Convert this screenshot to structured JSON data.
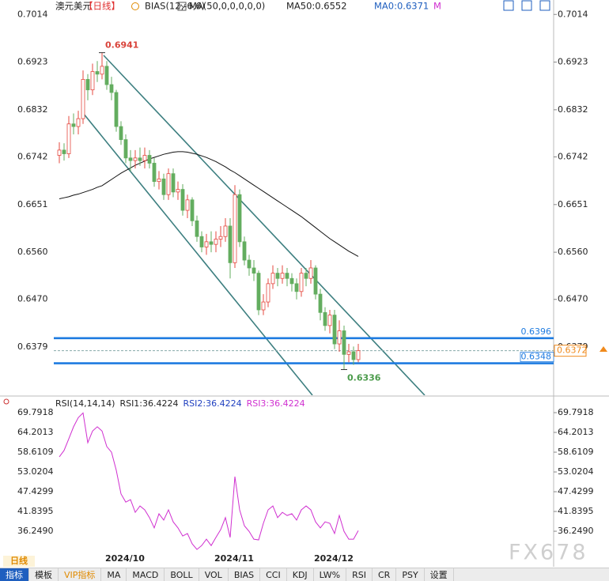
{
  "header": {
    "symbol": "澳元美元",
    "period": "【日线】",
    "bias": "BIAS(12,-6,6)",
    "ma": "MA(50,0,0,0,0,0)",
    "ma50": "MA50:0.6552",
    "ma0": "MA0:0.6371",
    "m": "M"
  },
  "period_tab": "日线",
  "watermark": "FX678",
  "toolbar": [
    "指标",
    "模板",
    "VIP指标",
    "MA",
    "MACD",
    "BOLL",
    "VOL",
    "BIAS",
    "CCI",
    "KDJ",
    "LW%",
    "RSI",
    "CR",
    "PSY",
    "设置"
  ],
  "chart_data": [
    {
      "type": "candlestick",
      "categories": [
        null,
        null,
        null,
        null,
        null,
        null,
        null,
        null,
        null,
        null,
        "2024/10",
        null,
        null,
        null,
        null,
        null,
        null,
        null,
        null,
        null,
        null,
        null,
        null,
        null,
        null,
        null,
        null,
        null,
        null,
        null,
        null,
        null,
        null,
        "2024/11",
        null,
        null,
        null,
        null,
        null,
        null,
        null,
        null,
        null,
        null,
        null,
        null,
        null,
        null,
        null,
        null,
        null,
        null,
        null,
        null,
        "2024/12",
        null,
        null,
        null,
        null,
        null,
        null,
        null,
        null,
        null
      ],
      "open": [
        0.6745,
        0.6755,
        0.6748,
        0.6805,
        0.68,
        0.6815,
        0.689,
        0.687,
        0.6905,
        0.69,
        0.6915,
        0.688,
        0.6865,
        0.68,
        0.6775,
        0.674,
        0.6735,
        0.674,
        0.6735,
        0.6745,
        0.673,
        0.6695,
        0.67,
        0.667,
        0.671,
        0.6675,
        0.668,
        0.664,
        0.666,
        0.662,
        0.659,
        0.657,
        0.658,
        0.6575,
        0.6585,
        0.659,
        0.661,
        0.654,
        0.667,
        0.658,
        0.6545,
        0.653,
        0.652,
        0.645,
        0.6465,
        0.65,
        0.652,
        0.651,
        0.652,
        0.651,
        0.65,
        0.6485,
        0.652,
        0.651,
        0.653,
        0.648,
        0.6445,
        0.642,
        0.644,
        0.6385,
        0.641,
        0.6365,
        0.637,
        0.6355
      ],
      "high": [
        0.677,
        0.6768,
        0.682,
        0.6825,
        0.683,
        0.6907,
        0.69,
        0.692,
        0.6925,
        0.6941,
        0.6925,
        0.6895,
        0.687,
        0.681,
        0.6785,
        0.6755,
        0.6755,
        0.676,
        0.676,
        0.6755,
        0.674,
        0.6715,
        0.671,
        0.672,
        0.672,
        0.6695,
        0.669,
        0.667,
        0.6665,
        0.663,
        0.66,
        0.6595,
        0.66,
        0.66,
        0.661,
        0.6625,
        0.6625,
        0.6688,
        0.668,
        0.659,
        0.6555,
        0.6545,
        0.6525,
        0.648,
        0.651,
        0.6535,
        0.653,
        0.6535,
        0.653,
        0.652,
        0.651,
        0.653,
        0.653,
        0.6545,
        0.6535,
        0.649,
        0.6455,
        0.645,
        0.645,
        0.643,
        0.642,
        0.6385,
        0.638,
        0.6385
      ],
      "low": [
        0.673,
        0.6735,
        0.674,
        0.6785,
        0.6785,
        0.6805,
        0.685,
        0.686,
        0.6885,
        0.689,
        0.687,
        0.685,
        0.679,
        0.6765,
        0.673,
        0.6715,
        0.672,
        0.6725,
        0.672,
        0.672,
        0.6685,
        0.668,
        0.666,
        0.666,
        0.6665,
        0.666,
        0.663,
        0.6625,
        0.661,
        0.658,
        0.656,
        0.6555,
        0.656,
        0.656,
        0.657,
        0.658,
        0.651,
        0.653,
        0.657,
        0.6535,
        0.6515,
        0.6505,
        0.644,
        0.644,
        0.6455,
        0.649,
        0.6495,
        0.65,
        0.6495,
        0.6485,
        0.647,
        0.6475,
        0.6495,
        0.65,
        0.647,
        0.643,
        0.641,
        0.6405,
        0.6375,
        0.637,
        0.6336,
        0.635,
        0.6345,
        0.635
      ],
      "close": [
        0.6755,
        0.6748,
        0.6805,
        0.68,
        0.6815,
        0.689,
        0.687,
        0.6905,
        0.69,
        0.6915,
        0.688,
        0.6865,
        0.68,
        0.6775,
        0.674,
        0.6735,
        0.674,
        0.6735,
        0.6745,
        0.673,
        0.6695,
        0.67,
        0.667,
        0.671,
        0.6675,
        0.668,
        0.664,
        0.666,
        0.662,
        0.659,
        0.657,
        0.658,
        0.6575,
        0.6585,
        0.659,
        0.661,
        0.654,
        0.667,
        0.658,
        0.6545,
        0.653,
        0.652,
        0.645,
        0.6465,
        0.65,
        0.652,
        0.651,
        0.652,
        0.651,
        0.65,
        0.6485,
        0.652,
        0.651,
        0.653,
        0.648,
        0.6445,
        0.642,
        0.644,
        0.6385,
        0.641,
        0.6365,
        0.637,
        0.6355,
        0.6372
      ],
      "up_color": "#e5483f",
      "down_color": "#63ad5f",
      "ma50": {
        "color": "#111111",
        "values": [
          0.6662,
          0.6664,
          0.6666,
          0.6669,
          0.6671,
          0.6674,
          0.6677,
          0.668,
          0.6684,
          0.6687,
          0.6693,
          0.6699,
          0.6705,
          0.6711,
          0.6716,
          0.6721,
          0.6726,
          0.673,
          0.6734,
          0.6738,
          0.6741,
          0.6744,
          0.6747,
          0.6749,
          0.6751,
          0.6752,
          0.6752,
          0.6751,
          0.6749,
          0.6747,
          0.6744,
          0.6741,
          0.6737,
          0.6733,
          0.6728,
          0.6723,
          0.6717,
          0.6712,
          0.6706,
          0.67,
          0.6694,
          0.6688,
          0.6682,
          0.6676,
          0.667,
          0.6664,
          0.6658,
          0.6652,
          0.6646,
          0.664,
          0.6634,
          0.6628,
          0.6621,
          0.6614,
          0.6607,
          0.66,
          0.6593,
          0.6586,
          0.658,
          0.6574,
          0.6568,
          0.6562,
          0.6557,
          0.6552
        ]
      },
      "ylim": [
        0.6287,
        0.7034
      ],
      "yticks": [
        0.7014,
        0.6923,
        0.6832,
        0.6742,
        0.6651,
        {
          "value": 0.656,
          "label": "0.6560"
        },
        {
          "value": 0.647,
          "label": "0.6470"
        },
        0.6379
      ],
      "levels": [
        {
          "value": 0.6396,
          "color": "#1e7be0"
        },
        {
          "value": 0.6348,
          "color": "#1e7be0"
        }
      ],
      "last_price": {
        "value": 0.6372,
        "color": "#f08a1c"
      },
      "high_label": {
        "value": 0.6941,
        "color": "#d9433a"
      },
      "low_label": {
        "value": 0.6336,
        "color": "#4a9a4a"
      }
    },
    {
      "type": "line",
      "title": "RSI(14,14,14)",
      "legend": [
        {
          "text": "RSI1:36.4224",
          "color": "#222222"
        },
        {
          "text": "RSI2:36.4224",
          "color": "#2040c0"
        },
        {
          "text": "RSI3:36.4224",
          "color": "#d030d0"
        }
      ],
      "color": "#d030d0",
      "values": [
        57.3,
        59.1,
        62.4,
        65.8,
        68.4,
        69.7,
        61.3,
        64.6,
        65.8,
        64.6,
        60.2,
        58.6,
        53.5,
        46.8,
        44.5,
        45.2,
        41.6,
        43.4,
        42.3,
        40.1,
        37.2,
        41.2,
        39.4,
        42.3,
        38.9,
        37.2,
        34.9,
        35.6,
        32.7,
        31.1,
        32.2,
        34.0,
        32.2,
        34.5,
        36.7,
        40.1,
        34.5,
        51.7,
        42.3,
        37.8,
        36.2,
        34.0,
        33.8,
        38.5,
        42.3,
        43.4,
        40.1,
        41.6,
        40.7,
        41.2,
        39.4,
        42.3,
        43.4,
        42.3,
        38.9,
        37.2,
        38.9,
        38.5,
        35.6,
        40.7,
        36.2,
        34.0,
        34.0,
        36.4224
      ],
      "ylim": [
        30.0,
        73.6
      ],
      "yticks": [
        69.7918,
        64.2013,
        58.6109,
        53.0204,
        47.4299,
        41.8395,
        {
          "value": 36.249,
          "label": "36.2490"
        }
      ]
    }
  ]
}
